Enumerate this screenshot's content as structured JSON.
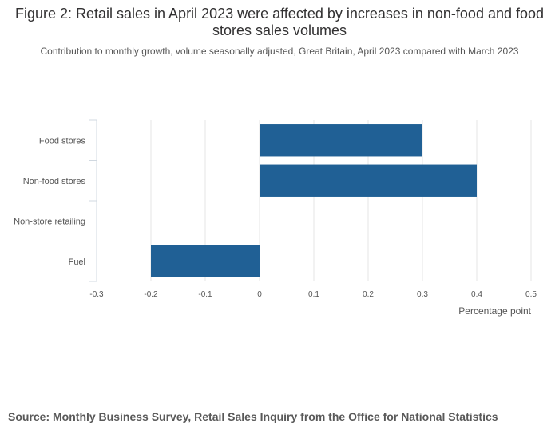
{
  "chart_data": {
    "type": "bar",
    "orientation": "horizontal",
    "title": "Figure 2: Retail sales in April 2023 were affected by increases in non-food and food stores sales volumes",
    "subtitle": "Contribution to monthly growth, volume seasonally adjusted, Great Britain, April 2023 compared with March 2023",
    "categories": [
      "Food stores",
      "Non-food stores",
      "Non-store retailing",
      "Fuel"
    ],
    "values": [
      0.3,
      0.4,
      0.0,
      -0.2
    ],
    "xlabel": "Percentage point",
    "ylabel": "",
    "xlim": [
      -0.3,
      0.5
    ],
    "xticks": [
      "-0.3",
      "-0.2",
      "-0.1",
      "0",
      "0.1",
      "0.2",
      "0.3",
      "0.4",
      "0.5"
    ],
    "grid": true,
    "bar_color": "#206095",
    "grid_color": "#e6e6e6"
  },
  "source": "Source: Monthly Business Survey, Retail Sales Inquiry from the Office for National Statistics"
}
